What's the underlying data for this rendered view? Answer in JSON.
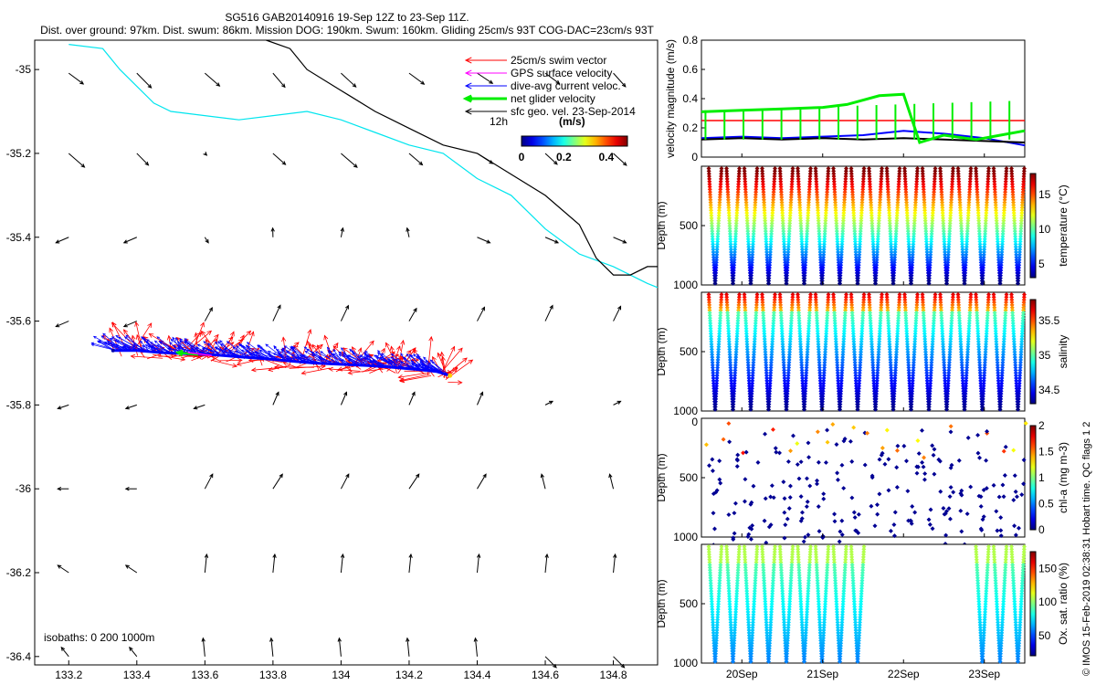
{
  "header": {
    "title": "SG516 GAB20140916 19-Sep 12Z to 23-Sep 11Z.",
    "subtitle": "Dist. over ground: 97km. Dist. swum: 86km. Mission DOG: 190km. Swum: 160km. Gliding 25cm/s 93T COG-DAC=23cm/s 93T"
  },
  "credit": "© IMOS 15-Feb-2019 02:38:31 Hobart time. QC flags 1  2",
  "colors": {
    "swim": "#ff0000",
    "gps": "#ff00ff",
    "dac": "#0000ff",
    "net": "#00ee00",
    "geo": "#000000",
    "isobath_shallow": "#00e5ee",
    "isobath_deep": "#000000"
  },
  "chart_data": [
    {
      "id": "map",
      "type": "scatter",
      "xlim": [
        133.1,
        134.93
      ],
      "ylim": [
        -36.42,
        -34.93
      ],
      "xticks": [
        "133.2",
        "133.4",
        "133.6",
        "133.8",
        "134",
        "134.2",
        "134.4",
        "134.6",
        "134.8"
      ],
      "xtick_values": [
        133.2,
        133.4,
        133.6,
        133.8,
        134.0,
        134.2,
        134.4,
        134.6,
        134.8
      ],
      "yticks": [
        "-35",
        "-35.2",
        "-35.4",
        "-35.6",
        "-35.8",
        "-36",
        "-36.2",
        "-36.4"
      ],
      "ytick_values": [
        -35,
        -35.2,
        -35.4,
        -35.6,
        -35.8,
        -36,
        -36.2,
        -36.4
      ],
      "legend": {
        "items": [
          "25cm/s swim vector",
          "GPS surface velocity",
          "dive-avg current veloc.",
          "net glider velocity",
          "sfc geo. vel. 23-Sep-2014"
        ],
        "scale_label": "12h",
        "colorbar_title": "(m/s)",
        "colorbar_ticks": [
          "0",
          "0.2",
          "0.4"
        ],
        "colorbar_range": [
          0,
          0.5
        ]
      },
      "isobath_label": "isobaths: 0    200  1000m",
      "track": {
        "start": [
          133.33,
          -35.67
        ],
        "end": [
          134.32,
          -35.73
        ],
        "lon": [
          133.33,
          133.4,
          133.47,
          133.55,
          133.62,
          133.7,
          133.78,
          133.85,
          133.92,
          134.0,
          134.08,
          134.15,
          134.22,
          134.28,
          134.32
        ],
        "lat": [
          -35.67,
          -35.67,
          -35.675,
          -35.678,
          -35.68,
          -35.685,
          -35.69,
          -35.695,
          -35.7,
          -35.703,
          -35.706,
          -35.71,
          -35.715,
          -35.72,
          -35.73
        ]
      },
      "isobath_200": {
        "lon": [
          133.2,
          133.3,
          133.35,
          133.45,
          133.5,
          133.6,
          133.7,
          133.8,
          133.9,
          134.0,
          134.1,
          134.2,
          134.3,
          134.4,
          134.5,
          134.6,
          134.7,
          134.8,
          134.9,
          134.93
        ],
        "lat": [
          -34.94,
          -34.95,
          -35.0,
          -35.08,
          -35.1,
          -35.11,
          -35.12,
          -35.11,
          -35.1,
          -35.12,
          -35.15,
          -35.18,
          -35.2,
          -35.26,
          -35.3,
          -35.38,
          -35.44,
          -35.47,
          -35.51,
          -35.52
        ]
      },
      "isobath_1000": {
        "lon": [
          133.78,
          133.85,
          133.9,
          134.0,
          134.1,
          134.2,
          134.3,
          134.4,
          134.5,
          134.6,
          134.7,
          134.75,
          134.8,
          134.85,
          134.9,
          134.93
        ],
        "lat": [
          -34.93,
          -34.95,
          -35.0,
          -35.05,
          -35.1,
          -35.14,
          -35.18,
          -35.2,
          -35.25,
          -35.3,
          -35.37,
          -35.45,
          -35.49,
          -35.49,
          -35.47,
          -35.47
        ]
      }
    },
    {
      "id": "velocity",
      "type": "line",
      "ylabel": "velocity magnitude (m/s)",
      "yticks": [
        "0",
        "0.2",
        "0.4",
        "0.6",
        "0.8"
      ],
      "ylim": [
        0,
        0.8
      ],
      "xlim": [
        19.5,
        23.5
      ],
      "series": [
        {
          "color": "#ff0000",
          "x": [
            19.5,
            23.5
          ],
          "values": [
            0.25,
            0.25
          ]
        },
        {
          "color": "#0000ff",
          "x": [
            19.5,
            20,
            20.5,
            21,
            21.5,
            22,
            22.5,
            23,
            23.5
          ],
          "values": [
            0.13,
            0.14,
            0.13,
            0.14,
            0.15,
            0.18,
            0.16,
            0.13,
            0.08
          ]
        },
        {
          "color": "#000000",
          "x": [
            19.5,
            20,
            20.5,
            21,
            21.5,
            22,
            22.5,
            23,
            23.5
          ],
          "values": [
            0.12,
            0.13,
            0.12,
            0.13,
            0.12,
            0.13,
            0.12,
            0.11,
            0.1
          ]
        },
        {
          "color": "#00ee00",
          "x": [
            19.5,
            20,
            20.5,
            21,
            21.3,
            21.7,
            22,
            22.2,
            22.5,
            22.9,
            23.2,
            23.5
          ],
          "values": [
            0.31,
            0.32,
            0.33,
            0.34,
            0.36,
            0.42,
            0.43,
            0.1,
            0.15,
            0.12,
            0.15,
            0.18
          ]
        }
      ]
    },
    {
      "id": "temperature",
      "type": "scatter",
      "ylabel": "Depth (m)",
      "yticks": [
        "500",
        "1000"
      ],
      "ylim": [
        0,
        1000
      ],
      "colorbar_label": "temperature (°C)",
      "colorbar_ticks": [
        "5",
        "10",
        "15"
      ],
      "colorbar_range": [
        3,
        18
      ]
    },
    {
      "id": "salinity",
      "type": "scatter",
      "ylabel": "Depth (m)",
      "yticks": [
        "500",
        "1000"
      ],
      "ylim": [
        0,
        1000
      ],
      "colorbar_label": "salinity",
      "colorbar_ticks": [
        "34.5",
        "35",
        "35.5"
      ],
      "colorbar_range": [
        34.3,
        35.8
      ]
    },
    {
      "id": "chla",
      "type": "scatter",
      "ylabel": "Depth (m)",
      "yticks": [
        "0",
        "500",
        "1000"
      ],
      "ylim": [
        0,
        1000
      ],
      "colorbar_label": "chl-a (mg m-3)",
      "colorbar_ticks": [
        "0",
        "0.5",
        "1",
        "1.5",
        "2"
      ],
      "colorbar_range": [
        0,
        2
      ]
    },
    {
      "id": "oxygen",
      "type": "scatter",
      "ylabel": "Depth (m)",
      "yticks": [
        "500",
        "1000"
      ],
      "ylim": [
        0,
        1000
      ],
      "colorbar_label": "Ox. sat. ratio (%)",
      "colorbar_ticks": [
        "50",
        "100",
        "150"
      ],
      "colorbar_range": [
        20,
        175
      ]
    },
    {
      "id": "time_axis",
      "type": "line",
      "xticks": [
        "20Sep",
        "21Sep",
        "22Sep",
        "23Sep"
      ],
      "xtick_values": [
        20,
        21,
        22,
        23
      ],
      "xlim": [
        19.5,
        23.5
      ]
    }
  ]
}
